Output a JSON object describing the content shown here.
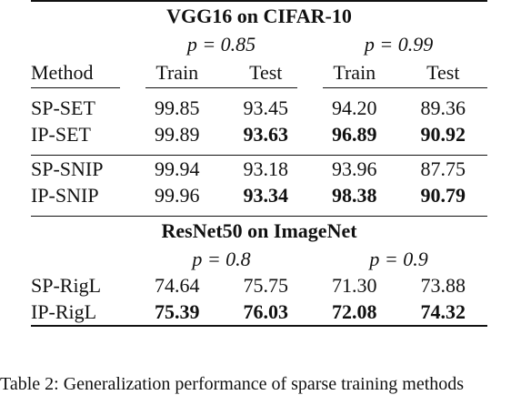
{
  "section1": {
    "title": "VGG16 on CIFAR-10",
    "p1": "p = 0.85",
    "p2": "p = 0.99"
  },
  "header": {
    "method": "Method",
    "train": "Train",
    "test": "Test"
  },
  "rows_block1": [
    {
      "method": "SP-SET",
      "v1": "99.85",
      "v2": "93.45",
      "v3": "94.20",
      "v4": "89.36"
    },
    {
      "method": "IP-SET",
      "v1": "99.89",
      "v2": "93.63",
      "v3": "96.89",
      "v4": "90.92"
    }
  ],
  "rows_block2": [
    {
      "method": "SP-SNIP",
      "v1": "99.94",
      "v2": "93.18",
      "v3": "93.96",
      "v4": "87.75"
    },
    {
      "method": "IP-SNIP",
      "v1": "99.96",
      "v2": "93.34",
      "v3": "98.38",
      "v4": "90.79"
    }
  ],
  "section2": {
    "title": "ResNet50 on ImageNet",
    "p1": "p = 0.8",
    "p2": "p = 0.9"
  },
  "rows_block3": [
    {
      "method": "SP-RigL",
      "v1": "74.64",
      "v2": "75.75",
      "v3": "71.30",
      "v4": "73.88"
    },
    {
      "method": "IP-RigL",
      "v1": "75.39",
      "v2": "76.03",
      "v3": "72.08",
      "v4": "74.32"
    }
  ],
  "caption": "Table 2: Generalization performance of sparse training methods"
}
